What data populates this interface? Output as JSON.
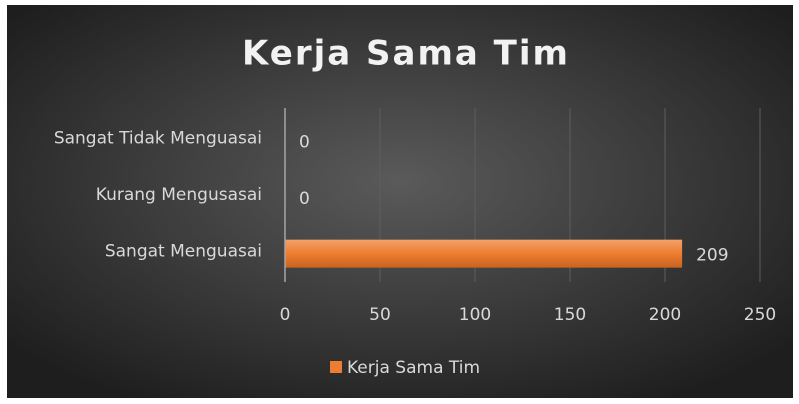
{
  "chart_data": {
    "type": "bar",
    "orientation": "horizontal",
    "title": "Kerja Sama Tim",
    "categories": [
      "Sangat Tidak Menguasai",
      "Kurang Mengusasai",
      "Sangat Menguasai"
    ],
    "series": [
      {
        "name": "Kerja Sama Tim",
        "color": "#ed7d31",
        "values": [
          0,
          0,
          209
        ]
      }
    ],
    "xlim": [
      0,
      250
    ],
    "xticks": [
      0,
      50,
      100,
      150,
      200,
      250
    ],
    "grid": true,
    "legend": "bottom"
  }
}
